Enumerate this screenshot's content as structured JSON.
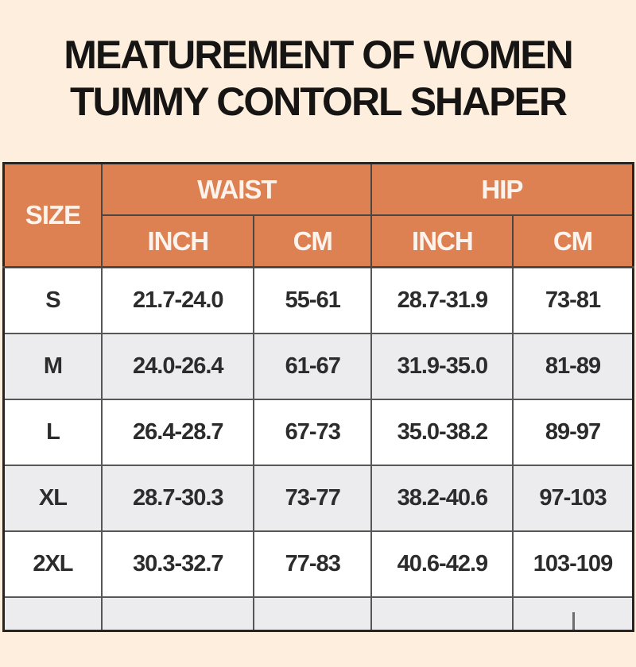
{
  "title": {
    "line1": "MEATUREMENT OF WOMEN",
    "line2": "TUMMY CONTORL SHAPER"
  },
  "colors": {
    "page_background": "#fdeedd",
    "header_background": "#dd8152",
    "header_text": "#fbf3ec",
    "row_white": "#ffffff",
    "row_alt_gray": "#ececee",
    "border_outer": "#272421",
    "border_inner": "#575757",
    "body_text": "#2c2c2c",
    "title_text": "#171514"
  },
  "chart_data": {
    "type": "table",
    "title": "MEATUREMENT OF WOMEN TUMMY CONTORL SHAPER",
    "header": {
      "size": "SIZE",
      "groups": [
        {
          "label": "WAIST",
          "sub": [
            "INCH",
            "CM"
          ]
        },
        {
          "label": "HIP",
          "sub": [
            "INCH",
            "CM"
          ]
        }
      ]
    },
    "columns": [
      "SIZE",
      "WAIST INCH",
      "WAIST CM",
      "HIP INCH",
      "HIP CM"
    ],
    "rows": [
      [
        "S",
        "21.7-24.0",
        "55-61",
        "28.7-31.9",
        "73-81"
      ],
      [
        "M",
        "24.0-26.4",
        "61-67",
        "31.9-35.0",
        "81-89"
      ],
      [
        "L",
        "26.4-28.7",
        "67-73",
        "35.0-38.2",
        "89-97"
      ],
      [
        "XL",
        "28.7-30.3",
        "73-77",
        "38.2-40.6",
        "97-103"
      ],
      [
        "2XL",
        "30.3-32.7",
        "77-83",
        "40.6-42.9",
        "103-109"
      ]
    ],
    "layout_hints": {
      "row_striping": [
        "white",
        "gray",
        "white",
        "gray",
        "white"
      ],
      "partial_next_row_visible_at_bottom": true
    }
  }
}
